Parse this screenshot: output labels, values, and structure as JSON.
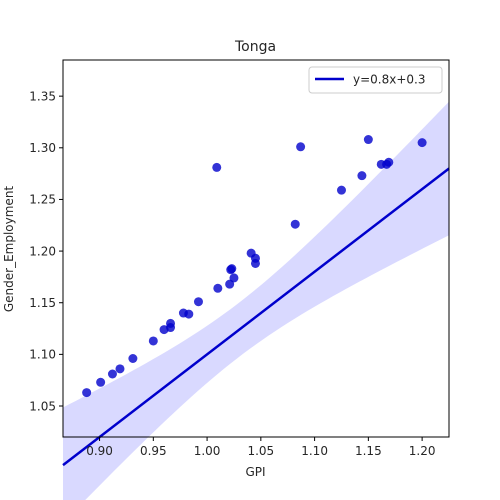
{
  "chart_data": {
    "type": "scatter",
    "title": "Tonga",
    "xlabel": "GPI",
    "ylabel": "Gender_Employment",
    "xlim": [
      0.866,
      1.225
    ],
    "ylim": [
      1.02,
      1.385
    ],
    "xticks": [
      0.9,
      0.95,
      1.0,
      1.05,
      1.1,
      1.15,
      1.2
    ],
    "xtick_labels": [
      "0.90",
      "0.95",
      "1.00",
      "1.05",
      "1.10",
      "1.15",
      "1.20"
    ],
    "yticks": [
      1.05,
      1.1,
      1.15,
      1.2,
      1.25,
      1.3,
      1.35
    ],
    "ytick_labels": [
      "1.05",
      "1.10",
      "1.15",
      "1.20",
      "1.25",
      "1.30",
      "1.35"
    ],
    "grid": false,
    "legend_position": "top-right",
    "series": [
      {
        "name": "y=0.8x+0.3",
        "color": "#0000cc",
        "points": [
          [
            0.888,
            1.063
          ],
          [
            0.901,
            1.073
          ],
          [
            0.912,
            1.081
          ],
          [
            0.919,
            1.086
          ],
          [
            0.931,
            1.096
          ],
          [
            0.95,
            1.113
          ],
          [
            0.96,
            1.124
          ],
          [
            0.966,
            1.126
          ],
          [
            0.966,
            1.13
          ],
          [
            0.978,
            1.14
          ],
          [
            0.983,
            1.139
          ],
          [
            0.992,
            1.151
          ],
          [
            1.009,
            1.281
          ],
          [
            1.01,
            1.164
          ],
          [
            1.021,
            1.168
          ],
          [
            1.022,
            1.182
          ],
          [
            1.023,
            1.183
          ],
          [
            1.025,
            1.174
          ],
          [
            1.041,
            1.198
          ],
          [
            1.045,
            1.193
          ],
          [
            1.045,
            1.188
          ],
          [
            1.082,
            1.226
          ],
          [
            1.087,
            1.301
          ],
          [
            1.125,
            1.259
          ],
          [
            1.144,
            1.273
          ],
          [
            1.15,
            1.308
          ],
          [
            1.162,
            1.284
          ],
          [
            1.167,
            1.284
          ],
          [
            1.169,
            1.286
          ],
          [
            1.2,
            1.305
          ]
        ],
        "fit": {
          "slope": 0.8,
          "intercept": 0.3
        }
      }
    ],
    "ci_color": "#0000ff"
  }
}
